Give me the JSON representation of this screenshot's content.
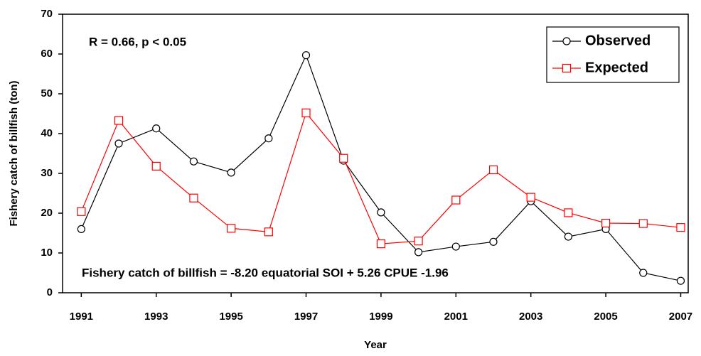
{
  "chart_data": {
    "type": "line",
    "x_label": "Year",
    "y_label": "Fishery catch of billfish (ton)",
    "annotations": [
      "R = 0.66,  p < 0.05",
      "Fishery catch of billfish = -8.20 equatorial SOI + 5.26 CPUE -1.96"
    ],
    "x": [
      1991,
      1992,
      1993,
      1994,
      1995,
      1996,
      1997,
      1998,
      1999,
      2000,
      2001,
      2002,
      2003,
      2004,
      2005,
      2006,
      2007
    ],
    "series": [
      {
        "name": "Observed",
        "color": "#000000",
        "marker": "circle",
        "values": [
          16,
          37.5,
          41.3,
          33,
          30.2,
          38.8,
          59.7,
          33.2,
          20.2,
          10.2,
          11.6,
          12.8,
          23,
          14.1,
          16,
          5,
          3
        ]
      },
      {
        "name": "Expected",
        "color": "#ff0000",
        "marker": "square",
        "values": [
          20.4,
          43.3,
          31.8,
          23.8,
          16.2,
          15.3,
          45.2,
          33.8,
          12.3,
          13,
          23.3,
          30.9,
          24,
          20.1,
          17.5,
          17.4,
          16.4
        ]
      }
    ],
    "xlim": [
      1990.5,
      2007.2
    ],
    "xticks": [
      1991,
      1993,
      1995,
      1997,
      1999,
      2001,
      2003,
      2005,
      2007
    ],
    "ylim": [
      0,
      70
    ],
    "yticks": [
      0,
      10,
      20,
      30,
      40,
      50,
      60,
      70
    ],
    "legend": "top-right"
  }
}
